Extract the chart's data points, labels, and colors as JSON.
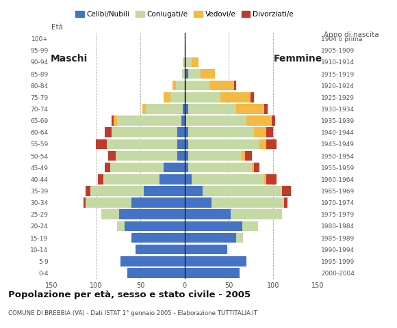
{
  "age_groups": [
    "0-4",
    "5-9",
    "10-14",
    "15-19",
    "20-24",
    "25-29",
    "30-34",
    "35-39",
    "40-44",
    "45-49",
    "50-54",
    "55-59",
    "60-64",
    "65-69",
    "70-74",
    "75-79",
    "80-84",
    "85-89",
    "90-94",
    "95-99",
    "100+"
  ],
  "birth_years": [
    "2000-2004",
    "1995-1999",
    "1990-1994",
    "1985-1989",
    "1980-1984",
    "1975-1979",
    "1970-1974",
    "1965-1969",
    "1960-1964",
    "1955-1959",
    "1950-1954",
    "1945-1949",
    "1940-1944",
    "1935-1939",
    "1930-1934",
    "1925-1929",
    "1920-1924",
    "1915-1919",
    "1910-1914",
    "1905-1909",
    "1904 o prima"
  ],
  "males": {
    "celibe": [
      65,
      72,
      55,
      60,
      68,
      74,
      60,
      46,
      28,
      24,
      8,
      8,
      8,
      4,
      2,
      0,
      0,
      0,
      0,
      0,
      0
    ],
    "coniugato": [
      0,
      0,
      0,
      0,
      8,
      20,
      52,
      60,
      64,
      60,
      70,
      80,
      74,
      72,
      42,
      16,
      10,
      3,
      2,
      0,
      0
    ],
    "vedovo": [
      0,
      0,
      0,
      0,
      0,
      0,
      0,
      0,
      0,
      0,
      0,
      0,
      0,
      4,
      4,
      8,
      4,
      0,
      0,
      0,
      0
    ],
    "divorziato": [
      0,
      0,
      0,
      0,
      0,
      0,
      2,
      6,
      6,
      6,
      8,
      12,
      8,
      2,
      0,
      0,
      0,
      0,
      0,
      0,
      0
    ]
  },
  "females": {
    "nubile": [
      62,
      70,
      48,
      58,
      65,
      52,
      30,
      20,
      8,
      4,
      4,
      4,
      4,
      2,
      4,
      2,
      2,
      4,
      2,
      0,
      0
    ],
    "coniugata": [
      0,
      0,
      0,
      8,
      18,
      58,
      82,
      90,
      82,
      72,
      60,
      80,
      74,
      68,
      54,
      38,
      26,
      14,
      6,
      2,
      0
    ],
    "vedova": [
      0,
      0,
      0,
      0,
      0,
      0,
      0,
      0,
      2,
      2,
      4,
      8,
      14,
      28,
      32,
      34,
      28,
      16,
      8,
      0,
      0
    ],
    "divorziata": [
      0,
      0,
      0,
      0,
      0,
      0,
      4,
      10,
      12,
      6,
      8,
      12,
      8,
      4,
      4,
      4,
      2,
      0,
      0,
      0,
      0
    ]
  },
  "colors": {
    "celibe_nubile": "#4472C4",
    "coniugato_coniugata": "#C5D9A4",
    "vedovo_vedova": "#F4B942",
    "divorziato_divorziata": "#C0392B"
  },
  "xlim": 150,
  "title": "Popolazione per età, sesso e stato civile - 2005",
  "subtitle": "COMUNE DI BREBBIA (VA) - Dati ISTAT 1° gennaio 2005 - Elaborazione TUTTITALIA.IT",
  "label_maschi": "Maschi",
  "label_femmine": "Femmine",
  "label_eta": "Età",
  "label_anno": "Anno di nascita",
  "legend_labels": [
    "Celibi/Nubili",
    "Coniugati/e",
    "Vedovi/e",
    "Divorziati/e"
  ],
  "bg_color": "#FFFFFF",
  "grid_color": "#AAAAAA",
  "bar_height": 0.85
}
